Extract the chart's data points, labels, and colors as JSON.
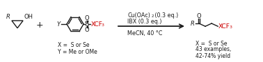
{
  "bg_color": "#ffffff",
  "text_color": "#1a1a1a",
  "red_color": "#cc0000",
  "figsize": [
    3.78,
    0.9
  ],
  "dpi": 100,
  "label_x": "X =  S or Se",
  "label_y": "Y = Me or OMe",
  "product_label_x": "X =  S or Se",
  "product_label_examples": "43 examples,",
  "product_label_yield": "42-74% yield"
}
